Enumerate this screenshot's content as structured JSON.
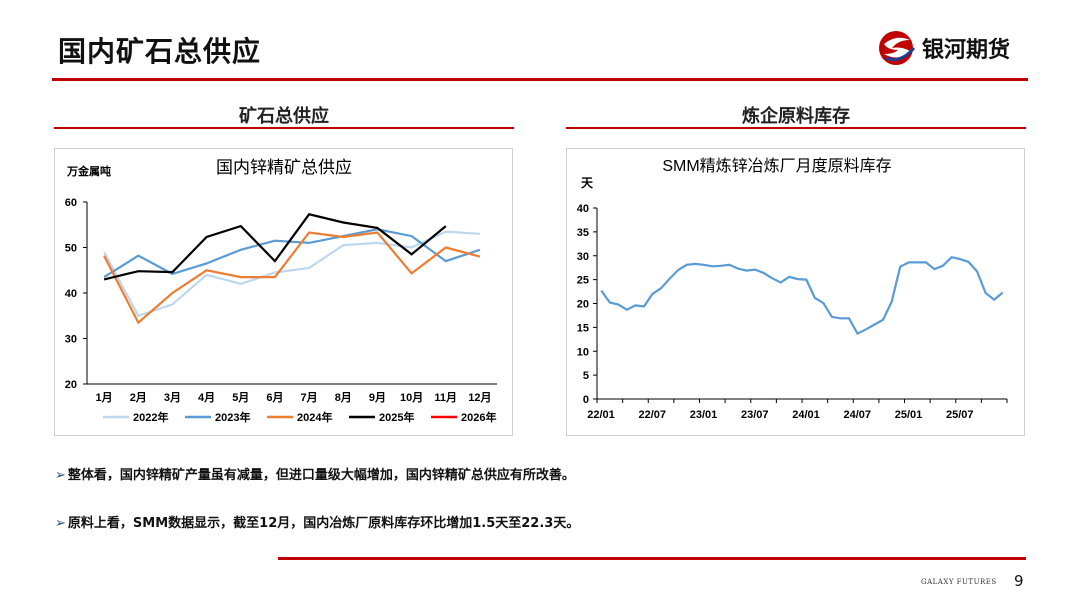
{
  "header": {
    "title": "国内矿石总供应",
    "logo_text": "银河期货"
  },
  "sections": {
    "left_title": "矿石总供应",
    "right_title": "炼企原料库存"
  },
  "chart_data": [
    {
      "type": "line",
      "title": "国内锌精矿总供应",
      "ylabel": "万金属吨",
      "categories": [
        "1月",
        "2月",
        "3月",
        "4月",
        "5月",
        "6月",
        "7月",
        "8月",
        "9月",
        "10月",
        "11月",
        "12月"
      ],
      "ylim": [
        20,
        60
      ],
      "yticks": [
        20,
        30,
        40,
        50,
        60
      ],
      "legend_position": "bottom",
      "series": [
        {
          "name": "2022年",
          "color": "#bdd7ee",
          "values": [
            49,
            35,
            37.5,
            44,
            42,
            44.5,
            45.5,
            50.5,
            51,
            50,
            53.5,
            53
          ]
        },
        {
          "name": "2023年",
          "color": "#5b9bd5",
          "values": [
            43.5,
            48.2,
            44.2,
            46.5,
            49.5,
            51.5,
            51,
            52.5,
            54,
            52.5,
            47,
            49.5
          ]
        },
        {
          "name": "2024年",
          "color": "#ed7d31",
          "values": [
            48.2,
            33.5,
            40,
            45,
            43.5,
            43.5,
            53.3,
            52.3,
            53.3,
            44.3,
            50,
            48
          ]
        },
        {
          "name": "2025年",
          "color": "#000000",
          "values": [
            43,
            44.8,
            44.6,
            52.3,
            54.7,
            47,
            57.3,
            55.5,
            54.3,
            48.5,
            54.7,
            null
          ]
        },
        {
          "name": "2026年",
          "color": "#ff0000",
          "values": [
            null,
            null,
            null,
            null,
            null,
            null,
            null,
            null,
            null,
            null,
            null,
            null
          ]
        }
      ]
    },
    {
      "type": "line",
      "title": "SMM精炼锌冶炼厂月度原料库存",
      "ylabel": "天",
      "ylim": [
        0,
        40
      ],
      "yticks": [
        0,
        5,
        10,
        15,
        20,
        25,
        30,
        35,
        40
      ],
      "xtick_labels": [
        "22/01",
        "22/07",
        "23/01",
        "23/07",
        "24/01",
        "24/07",
        "25/01",
        "25/07"
      ],
      "color": "#5b9bd5",
      "values": [
        22.7,
        20.2,
        19.8,
        18.7,
        19.6,
        19.4,
        22,
        23.2,
        25.2,
        27,
        28.1,
        28.3,
        28.1,
        27.8,
        27.9,
        28.1,
        27.3,
        26.9,
        27.1,
        26.4,
        25.3,
        24.4,
        25.6,
        25.1,
        25,
        21.2,
        20.1,
        17.2,
        16.9,
        16.9,
        13.7,
        14.6,
        15.6,
        16.6,
        20.4,
        27.7,
        28.6,
        28.6,
        28.6,
        27.2,
        27.9,
        29.7,
        29.3,
        28.7,
        26.7,
        22.2,
        20.8,
        22.3
      ]
    }
  ],
  "bullets": [
    "整体看，国内锌精矿产量虽有减量，但进口量级大幅增加，国内锌精矿总供应有所改善。",
    "原料上看，SMM数据显示，截至12月，国内冶炼厂原料库存环比增加1.5天至22.3天。"
  ],
  "footer": {
    "brand": "GALAXY FUTURES",
    "page_number": "9"
  }
}
